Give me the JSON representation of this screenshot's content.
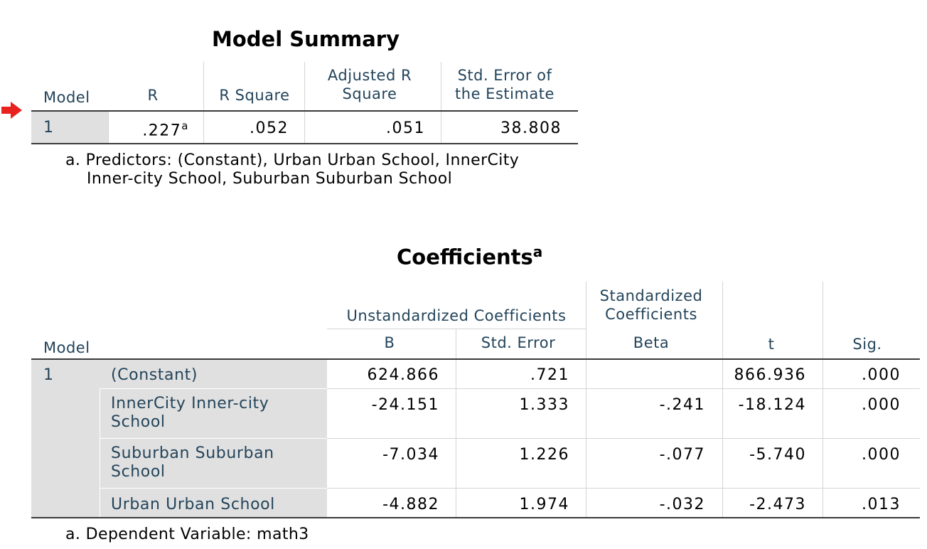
{
  "model_summary": {
    "title": "Model Summary",
    "headers": {
      "model": "Model",
      "r": "R",
      "r_square": "R Square",
      "adjusted_r_square": "Adjusted R Square",
      "std_error": "Std. Error of the Estimate"
    },
    "row": {
      "model": "1",
      "r": ".227",
      "r_sup": "a",
      "r_square": ".052",
      "adjusted_r_square": ".051",
      "std_error": "38.808"
    },
    "footnote_line1": "a. Predictors: (Constant), Urban Urban School, InnerCity",
    "footnote_line2": "Inner-city School, Suburban Suburban School"
  },
  "coefficients": {
    "title": "Coefficients",
    "title_sup": "a",
    "headers": {
      "model": "Model",
      "unstandardized": "Unstandardized Coefficients",
      "standardized": "Standardized Coefficients",
      "b": "B",
      "std_error": "Std. Error",
      "beta": "Beta",
      "t": "t",
      "sig": "Sig."
    },
    "model": "1",
    "rows": [
      {
        "label": "(Constant)",
        "b": "624.866",
        "se": ".721",
        "beta": "",
        "t": "866.936",
        "sig": ".000"
      },
      {
        "label": "InnerCity Inner-city School",
        "b": "-24.151",
        "se": "1.333",
        "beta": "-.241",
        "t": "-18.124",
        "sig": ".000"
      },
      {
        "label": "Suburban Suburban School",
        "b": "-7.034",
        "se": "1.226",
        "beta": "-.077",
        "t": "-5.740",
        "sig": ".000"
      },
      {
        "label": "Urban Urban School",
        "b": "-4.882",
        "se": "1.974",
        "beta": "-.032",
        "t": "-2.473",
        "sig": ".013"
      }
    ],
    "footnote": "a. Dependent Variable: math3"
  },
  "icons": {
    "marker": "arrow-right-icon"
  },
  "colors": {
    "marker": "#e8231f",
    "header_text": "#23445a",
    "shade": "#e0e0e0"
  }
}
